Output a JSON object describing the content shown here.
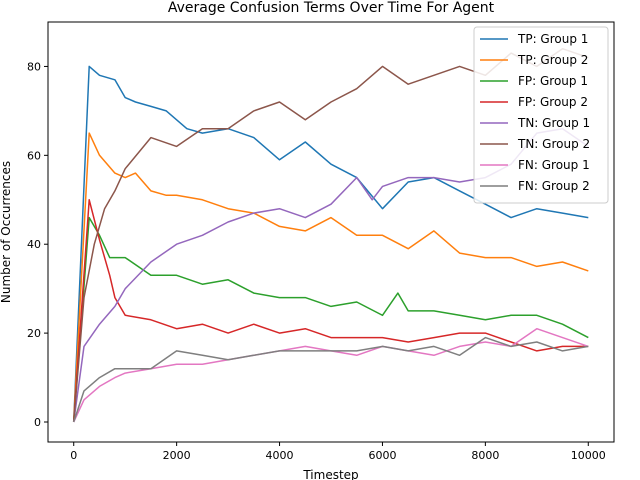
{
  "chart_data": {
    "type": "line",
    "title": "Average Confusion Terms Over Time For Agent",
    "xlabel": "Timestep",
    "ylabel": "Number of Occurrences",
    "xlim": [
      -500,
      10500
    ],
    "ylim": [
      -4.5,
      90
    ],
    "xticks": [
      0,
      2000,
      4000,
      6000,
      8000,
      10000
    ],
    "yticks": [
      0,
      20,
      40,
      60,
      80
    ],
    "xtick_labels": [
      "0",
      "2000",
      "4000",
      "6000",
      "8000",
      "10000"
    ],
    "ytick_labels": [
      "0",
      "20",
      "40",
      "60",
      "80"
    ],
    "grid": false,
    "legend_position": "top-right",
    "series": [
      {
        "name": "TP: Group 1",
        "color": "#1f77b4",
        "x": [
          0,
          300,
          500,
          800,
          1000,
          1200,
          1500,
          1800,
          2000,
          2200,
          2500,
          3000,
          3500,
          4000,
          4500,
          5000,
          5500,
          6000,
          6500,
          7000,
          7500,
          8000,
          8500,
          9000,
          9500,
          10000
        ],
        "y": [
          0,
          80,
          78,
          77,
          73,
          72,
          71,
          70,
          68,
          66,
          65,
          66,
          64,
          59,
          63,
          58,
          55,
          48,
          54,
          55,
          52,
          49,
          46,
          48,
          47,
          46
        ]
      },
      {
        "name": "TP: Group 2",
        "color": "#ff7f0e",
        "x": [
          0,
          300,
          500,
          800,
          1000,
          1200,
          1500,
          1800,
          2000,
          2500,
          3000,
          3500,
          4000,
          4500,
          5000,
          5500,
          6000,
          6500,
          7000,
          7500,
          8000,
          8500,
          9000,
          9500,
          10000
        ],
        "y": [
          0,
          65,
          60,
          56,
          55,
          56,
          52,
          51,
          51,
          50,
          48,
          47,
          44,
          43,
          46,
          42,
          42,
          39,
          43,
          38,
          37,
          37,
          35,
          36,
          34
        ]
      },
      {
        "name": "FP: Group 1",
        "color": "#2ca02c",
        "x": [
          0,
          300,
          500,
          700,
          1000,
          1500,
          2000,
          2500,
          3000,
          3500,
          4000,
          4500,
          5000,
          5500,
          6000,
          6300,
          6500,
          7000,
          7500,
          8000,
          8500,
          9000,
          9500,
          10000
        ],
        "y": [
          0,
          46,
          42,
          37,
          37,
          33,
          33,
          31,
          32,
          29,
          28,
          28,
          26,
          27,
          24,
          29,
          25,
          25,
          24,
          23,
          24,
          24,
          22,
          19
        ]
      },
      {
        "name": "FP: Group 2",
        "color": "#d62728",
        "x": [
          0,
          300,
          500,
          700,
          800,
          1000,
          1500,
          2000,
          2500,
          3000,
          3500,
          4000,
          4500,
          5000,
          5500,
          6000,
          6500,
          7000,
          7500,
          8000,
          8500,
          9000,
          9500,
          10000
        ],
        "y": [
          0,
          50,
          41,
          33,
          28,
          24,
          23,
          21,
          22,
          20,
          22,
          20,
          21,
          19,
          19,
          19,
          18,
          19,
          20,
          20,
          18,
          16,
          17,
          17
        ]
      },
      {
        "name": "TN: Group 1",
        "color": "#9467bd",
        "x": [
          0,
          200,
          500,
          800,
          1000,
          1500,
          2000,
          2500,
          3000,
          3500,
          4000,
          4500,
          5000,
          5500,
          5800,
          6000,
          6500,
          7000,
          7500,
          8000,
          8500,
          9000,
          9500,
          10000
        ],
        "y": [
          0,
          17,
          22,
          26,
          30,
          36,
          40,
          42,
          45,
          47,
          48,
          46,
          49,
          55,
          50,
          53,
          55,
          55,
          54,
          55,
          58,
          65,
          66,
          62
        ]
      },
      {
        "name": "TN: Group 2",
        "color": "#8c564b",
        "x": [
          0,
          200,
          400,
          600,
          800,
          1000,
          1500,
          2000,
          2500,
          3000,
          3500,
          4000,
          4500,
          5000,
          5500,
          6000,
          6500,
          7000,
          7500,
          8000,
          8500,
          9000,
          9500,
          10000
        ],
        "y": [
          0,
          28,
          40,
          48,
          52,
          57,
          64,
          62,
          66,
          66,
          70,
          72,
          68,
          72,
          75,
          80,
          76,
          78,
          80,
          78,
          83,
          80,
          84,
          82
        ]
      },
      {
        "name": "FN: Group 1",
        "color": "#e377c2",
        "x": [
          0,
          200,
          500,
          800,
          1000,
          1500,
          2000,
          2500,
          3000,
          3500,
          4000,
          4500,
          5000,
          5500,
          6000,
          6500,
          7000,
          7500,
          8000,
          8500,
          9000,
          9500,
          10000
        ],
        "y": [
          0,
          5,
          8,
          10,
          11,
          12,
          13,
          13,
          14,
          15,
          16,
          17,
          16,
          15,
          17,
          16,
          15,
          17,
          18,
          17,
          21,
          19,
          17
        ]
      },
      {
        "name": "FN: Group 2",
        "color": "#7f7f7f",
        "x": [
          0,
          200,
          500,
          800,
          1000,
          1500,
          2000,
          2500,
          3000,
          3500,
          4000,
          4500,
          5000,
          5500,
          6000,
          6500,
          7000,
          7500,
          8000,
          8500,
          9000,
          9500,
          10000
        ],
        "y": [
          0,
          7,
          10,
          12,
          12,
          12,
          16,
          15,
          14,
          15,
          16,
          16,
          16,
          16,
          17,
          16,
          17,
          15,
          19,
          17,
          18,
          16,
          17
        ]
      }
    ]
  }
}
